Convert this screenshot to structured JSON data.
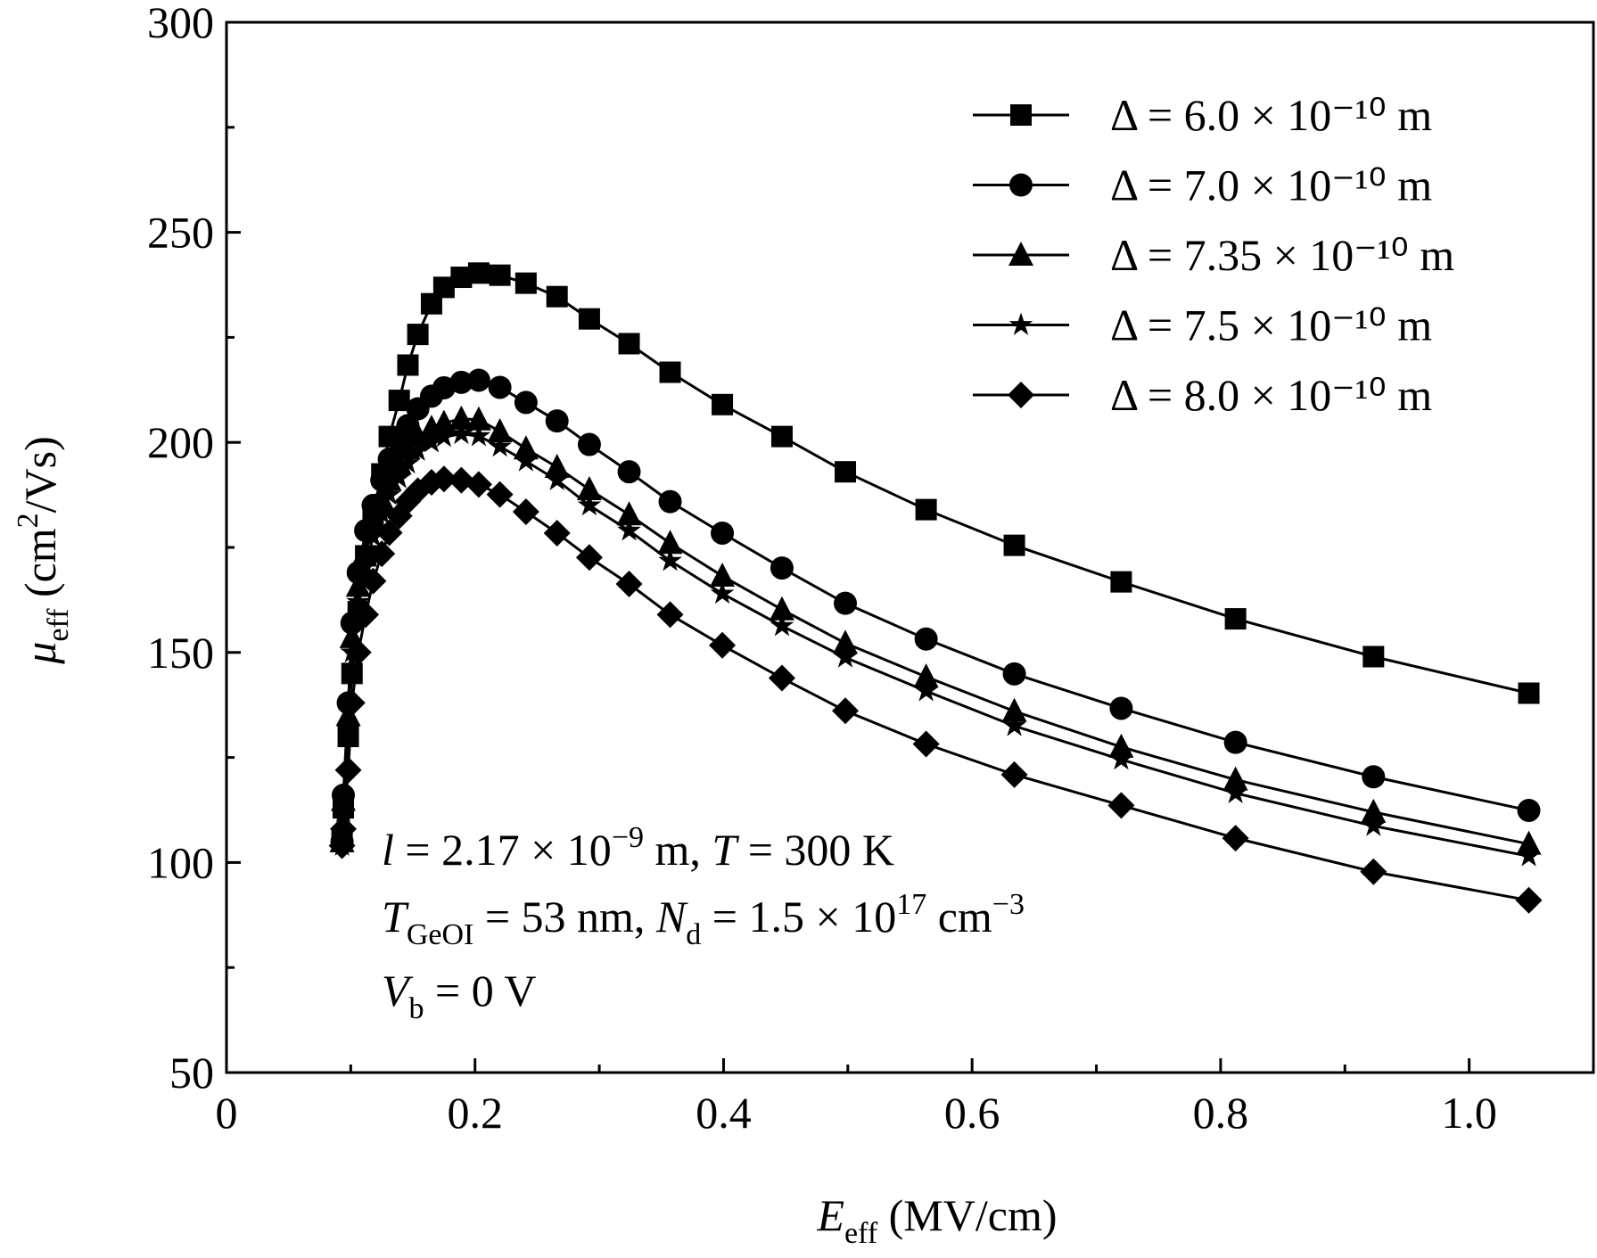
{
  "chart_data": {
    "type": "line",
    "xlabel": [
      {
        "text": "E",
        "italic": true
      },
      {
        "text": "eff",
        "sub": true
      },
      {
        "text": " (MV/cm)"
      }
    ],
    "ylabel": [
      {
        "text": "μ",
        "italic": true
      },
      {
        "text": "eff",
        "sub": true
      },
      {
        "text": " (cm"
      },
      {
        "text": "2",
        "sup": true
      },
      {
        "text": "/Vs)"
      }
    ],
    "xlim": [
      0,
      1.1
    ],
    "ylim": [
      50,
      300
    ],
    "xticks": [
      0,
      0.2,
      0.4,
      0.6,
      0.8,
      {
        "value": 1,
        "label": "1.0"
      }
    ],
    "xminorticks": [
      0.1,
      0.3,
      0.5,
      0.7,
      0.9,
      1.1
    ],
    "yticks": [
      50,
      100,
      150,
      200,
      250,
      300
    ],
    "yminorticks": [
      75,
      125,
      175,
      225,
      275
    ],
    "legend": "upper right",
    "x": [
      0.093,
      0.094,
      0.098,
      0.101,
      0.106,
      0.112,
      0.118,
      0.125,
      0.131,
      0.139,
      0.146,
      0.154,
      0.165,
      0.175,
      0.189,
      0.203,
      0.22,
      0.241,
      0.266,
      0.292,
      0.324,
      0.357,
      0.399,
      0.447,
      0.498,
      0.563,
      0.634,
      0.72,
      0.812,
      0.923,
      1.048
    ],
    "series": [
      {
        "name": "Δ = 6.0 × 10⁻¹⁰ m",
        "color": "#000000",
        "marker": "square",
        "values": [
          105,
          113,
          130,
          145,
          159.7,
          173,
          182.8,
          192.5,
          201.4,
          210,
          218.4,
          225.7,
          233,
          236.9,
          239.3,
          240.3,
          239.8,
          237.9,
          234.7,
          229.4,
          223.5,
          216.7,
          209,
          201.4,
          193,
          184,
          175.5,
          166.8,
          158,
          149,
          140.3
        ]
      },
      {
        "name": "Δ = 7.0 × 10⁻¹⁰ m",
        "color": "#000000",
        "marker": "circle",
        "values": [
          105,
          116,
          138,
          157,
          169,
          179,
          185,
          191,
          196,
          200.5,
          204,
          208,
          211,
          213,
          214.3,
          214.8,
          213.1,
          209.5,
          205.1,
          199.5,
          193,
          185.9,
          178.4,
          170.1,
          161.7,
          153.2,
          144.9,
          136.7,
          128.6,
          120.4,
          112.4
        ]
      },
      {
        "name": "Δ = 7.35 × 10⁻¹⁰ m",
        "color": "#000000",
        "marker": "triangle",
        "values": [
          105,
          114.8,
          135,
          153.6,
          165.8,
          174,
          181.5,
          186.4,
          191,
          194.9,
          198.5,
          201.5,
          203.4,
          204.6,
          205.6,
          205.4,
          202.6,
          198.5,
          194.1,
          188.8,
          182.8,
          176,
          168.2,
          160.2,
          152.2,
          144.2,
          136,
          127.5,
          119.7,
          112,
          104.4
        ]
      },
      {
        "name": "Δ = 7.5 × 10⁻¹⁰ m",
        "color": "#000000",
        "marker": "star",
        "values": [
          104,
          112,
          132,
          150,
          162,
          170.5,
          177.5,
          183,
          187.5,
          191.5,
          195,
          198,
          200,
          201.3,
          202,
          201.5,
          199,
          195.5,
          191,
          185,
          179,
          171.8,
          164,
          156.3,
          148.8,
          140.8,
          132.5,
          124.5,
          116.5,
          108.7,
          101.5
        ]
      },
      {
        "name": "Δ = 8.0 × 10⁻¹⁰ m",
        "color": "#000000",
        "marker": "diamond",
        "values": [
          104,
          108,
          122,
          138,
          150,
          159,
          167,
          173.5,
          178.5,
          182.5,
          186,
          188.5,
          190.5,
          191.3,
          191,
          190,
          187.6,
          183.5,
          178.4,
          172.6,
          166.3,
          159,
          151.7,
          143.9,
          136.1,
          128.2,
          120.9,
          113.6,
          105.8,
          97.8,
          91
        ]
      }
    ],
    "annotations": [
      [
        {
          "text": "l",
          "italic": true
        },
        {
          "text": " = 2.17 × 10"
        },
        {
          "text": "−9",
          "sup": true
        },
        {
          "text": " m, "
        },
        {
          "text": "T",
          "italic": true
        },
        {
          "text": " = 300 K"
        }
      ],
      [
        {
          "text": "T",
          "italic": true
        },
        {
          "text": "GeOI",
          "sub": true
        },
        {
          "text": " = 53 nm, "
        },
        {
          "text": "N",
          "italic": true
        },
        {
          "text": "d",
          "sub": true
        },
        {
          "text": " = 1.5 × 10"
        },
        {
          "text": "17",
          "sup": true
        },
        {
          "text": " cm"
        },
        {
          "text": "−3",
          "sup": true
        }
      ],
      [
        {
          "text": "V",
          "italic": true
        },
        {
          "text": "b",
          "sub": true
        },
        {
          "text": " = 0 V"
        }
      ]
    ]
  }
}
